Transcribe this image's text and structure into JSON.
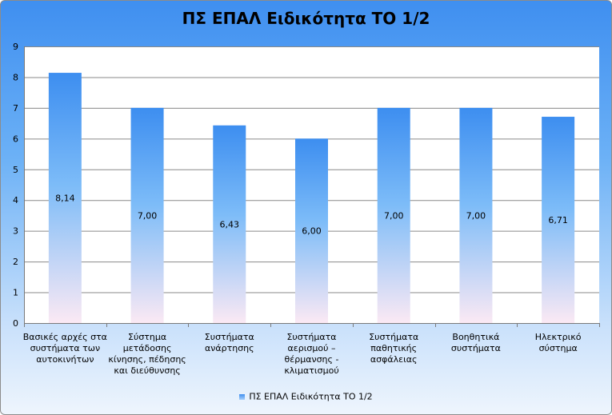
{
  "chart_data": {
    "type": "bar",
    "title": "ΠΣ ΕΠΑΛ Ειδικότητα ΤΟ 1/2",
    "categories": [
      [
        "Βασικές αρχές στα",
        "συστήματα των",
        "αυτοκινήτων"
      ],
      [
        "Σύστημα",
        "μετάδοσης",
        "κίνησης, πέδησης",
        "και διεύθυνσης"
      ],
      [
        "Συστήματα",
        "ανάρτησης"
      ],
      [
        "Συστήματα",
        "αερισμού –",
        "θέρμανσης -",
        "κλιματισμού"
      ],
      [
        "Συστήματα",
        "παθητικής",
        "ασφάλειας"
      ],
      [
        "Βοηθητικά",
        "συστήματα"
      ],
      [
        "Ηλεκτρικό",
        "σύστημα"
      ]
    ],
    "series": [
      {
        "name": "ΠΣ ΕΠΑΛ  Ειδικότητα ΤΟ 1/2",
        "values": [
          8.14,
          7.0,
          6.43,
          6.0,
          7.0,
          7.0,
          6.71
        ],
        "labels": [
          "8,14",
          "7,00",
          "6,43",
          "6,00",
          "7,00",
          "7,00",
          "6,71"
        ]
      }
    ],
    "ylim": [
      0,
      9
    ],
    "yticks": [
      "0",
      "1",
      "2",
      "3",
      "4",
      "5",
      "6",
      "7",
      "8",
      "9"
    ],
    "grid": true,
    "legend_position": "bottom",
    "colors": {
      "bar_top": "#3d8ef0",
      "bar_mid": "#7dbcf8",
      "bar_bottom": "#fbe9f4",
      "plot_bg": "#ffffff",
      "gridline": "#8a8a8a"
    }
  }
}
